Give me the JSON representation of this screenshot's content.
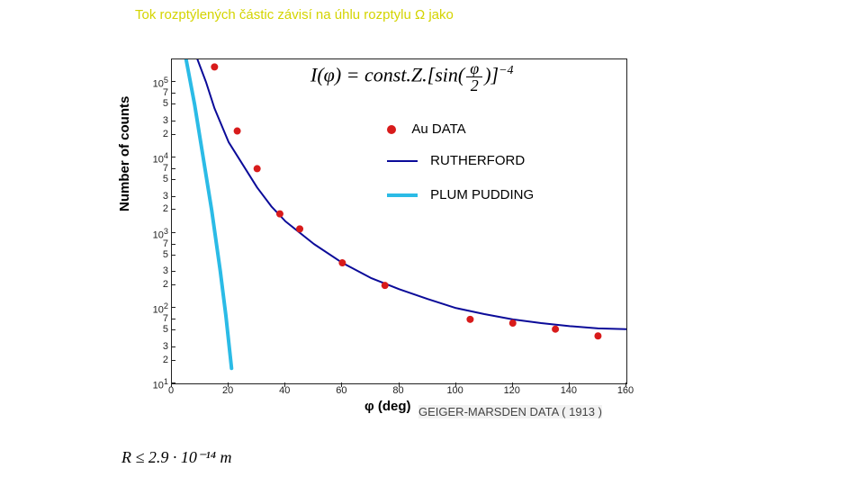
{
  "header": "Tok rozptýlených částic závisí na úhlu rozptylu Ω jako",
  "formula_html": "I(φ) = const.Z.[sin(<span class='frac'><span class='num'>φ</span><span class='den'>2</span></span>)]<span class='sup'>−4</span>",
  "bottom_formula": "R  ≤  2.9 · 10⁻¹⁴  m",
  "geiger_text": "GEIGER-MARSDEN DATA ( 1913 )",
  "legend": {
    "au": "Au DATA",
    "rutherford": "RUTHERFORD",
    "plum": "PLUM PUDDING"
  },
  "chart": {
    "type": "scatter+line (log-linear)",
    "xlabel": "φ (deg)",
    "ylabel": "Number of counts",
    "background_color": "#ffffff",
    "axis_color": "#222222",
    "xlim": [
      0,
      160
    ],
    "xtick_step": 20,
    "xticks": [
      0,
      20,
      40,
      60,
      80,
      100,
      120,
      140,
      160
    ],
    "ylog_min_exp": 1,
    "ylog_max_exp": 5.3,
    "y_major_exp": [
      1,
      2,
      3,
      4,
      5
    ],
    "y_sublabels": [
      "2",
      "3",
      "5",
      "7"
    ],
    "au_data": {
      "marker_color": "#d81b1b",
      "marker_radius": 4,
      "points_xy_logy": [
        [
          15,
          5.2
        ],
        [
          23,
          4.35
        ],
        [
          30,
          3.85
        ],
        [
          38,
          3.25
        ],
        [
          45,
          3.05
        ],
        [
          60,
          2.6
        ],
        [
          75,
          2.3
        ],
        [
          105,
          1.85
        ],
        [
          120,
          1.8
        ],
        [
          135,
          1.72
        ],
        [
          150,
          1.63
        ]
      ]
    },
    "rutherford_curve": {
      "line_color": "#0b0b99",
      "line_width": 2,
      "points_xy_logy": [
        [
          9,
          5.3
        ],
        [
          12,
          5.0
        ],
        [
          15,
          4.65
        ],
        [
          20,
          4.2
        ],
        [
          25,
          3.9
        ],
        [
          30,
          3.6
        ],
        [
          35,
          3.35
        ],
        [
          40,
          3.15
        ],
        [
          50,
          2.85
        ],
        [
          60,
          2.6
        ],
        [
          70,
          2.4
        ],
        [
          80,
          2.25
        ],
        [
          90,
          2.12
        ],
        [
          100,
          2.0
        ],
        [
          110,
          1.92
        ],
        [
          120,
          1.85
        ],
        [
          130,
          1.8
        ],
        [
          140,
          1.76
        ],
        [
          150,
          1.73
        ],
        [
          160,
          1.72
        ]
      ]
    },
    "plum_curve": {
      "line_color": "#2bbbe6",
      "line_width": 4,
      "points_xy_logy": [
        [
          5,
          5.3
        ],
        [
          8,
          4.7
        ],
        [
          11,
          4.0
        ],
        [
          14,
          3.3
        ],
        [
          17,
          2.5
        ],
        [
          19,
          1.9
        ],
        [
          21,
          1.2
        ]
      ]
    }
  }
}
